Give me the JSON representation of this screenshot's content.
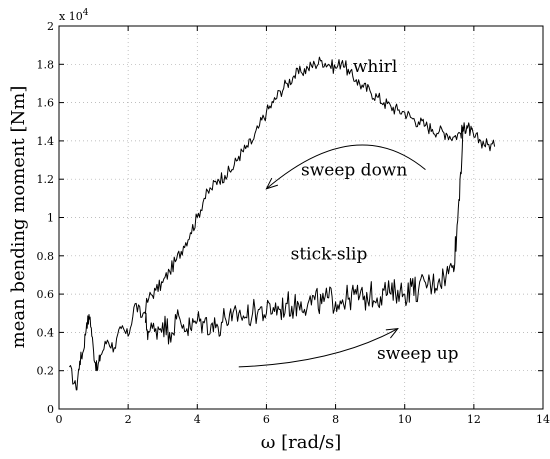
{
  "chart_data": {
    "type": "line",
    "title": "",
    "xlabel": "ω [rad/s]",
    "ylabel": "mean bending moment [Nm]",
    "xlim": [
      0,
      14
    ],
    "ylim": [
      0,
      2
    ],
    "y_multiplier_label": "x 10",
    "y_multiplier_exponent": "4",
    "grid": true,
    "xticks": [
      "0",
      "2",
      "4",
      "6",
      "8",
      "10",
      "12",
      "14"
    ],
    "yticks": [
      "0",
      "0.2",
      "0.4",
      "0.6",
      "0.8",
      "1",
      "1.2",
      "1.4",
      "1.6",
      "1.8",
      "2"
    ],
    "series": [
      {
        "x": [
          0.3,
          0.5,
          0.6,
          0.7,
          0.8,
          0.9,
          1.0,
          1.1,
          1.2,
          1.4,
          1.6,
          1.8,
          2.0,
          2.2,
          2.4,
          2.6,
          2.8,
          3.0,
          3.2,
          3.4,
          3.6,
          3.8,
          4.0,
          4.2,
          4.4,
          4.6,
          4.8,
          5.0,
          5.2,
          5.4,
          5.6,
          5.8,
          6.0,
          6.2,
          6.4,
          6.6,
          6.8,
          7.0,
          7.2,
          7.4,
          7.6,
          7.8,
          8.0,
          8.2,
          8.4,
          8.6,
          8.8,
          9.0,
          9.2,
          9.4,
          9.6,
          9.8,
          10.0,
          10.2,
          10.4,
          10.6,
          10.8,
          11.0,
          11.2,
          11.4,
          11.6,
          11.7,
          11.8,
          11.9,
          12.0,
          12.2,
          12.4,
          12.6
        ],
        "y": [
          0.22,
          0.1,
          0.25,
          0.3,
          0.45,
          0.48,
          0.3,
          0.2,
          0.28,
          0.36,
          0.32,
          0.42,
          0.38,
          0.55,
          0.48,
          0.58,
          0.62,
          0.66,
          0.72,
          0.78,
          0.85,
          0.92,
          1.0,
          1.1,
          1.15,
          1.2,
          1.22,
          1.25,
          1.32,
          1.36,
          1.4,
          1.48,
          1.55,
          1.6,
          1.66,
          1.7,
          1.74,
          1.76,
          1.78,
          1.8,
          1.82,
          1.8,
          1.78,
          1.82,
          1.75,
          1.72,
          1.68,
          1.66,
          1.63,
          1.6,
          1.58,
          1.56,
          1.55,
          1.52,
          1.5,
          1.48,
          1.46,
          1.45,
          1.44,
          1.42,
          1.44,
          1.46,
          1.48,
          1.45,
          1.42,
          1.4,
          1.38,
          1.37
        ]
      },
      {
        "x": [
          2.5,
          2.6,
          2.8,
          3.0,
          3.2,
          3.4,
          3.6,
          3.8,
          4.0,
          4.2,
          4.4,
          4.6,
          4.8,
          5.0,
          5.2,
          5.4,
          5.6,
          5.8,
          6.0,
          6.2,
          6.4,
          6.6,
          6.8,
          7.0,
          7.2,
          7.4,
          7.6,
          7.8,
          8.0,
          8.2,
          8.4,
          8.6,
          8.8,
          9.0,
          9.2,
          9.4,
          9.6,
          9.8,
          10.0,
          10.2,
          10.4,
          10.6,
          10.8,
          11.0,
          11.2,
          11.4,
          11.5,
          11.6,
          11.7
        ],
        "y": [
          0.45,
          0.4,
          0.42,
          0.45,
          0.4,
          0.47,
          0.44,
          0.42,
          0.46,
          0.45,
          0.44,
          0.43,
          0.48,
          0.46,
          0.5,
          0.48,
          0.5,
          0.52,
          0.5,
          0.53,
          0.52,
          0.55,
          0.53,
          0.56,
          0.55,
          0.57,
          0.55,
          0.58,
          0.56,
          0.57,
          0.58,
          0.6,
          0.57,
          0.6,
          0.58,
          0.62,
          0.6,
          0.62,
          0.6,
          0.64,
          0.62,
          0.66,
          0.65,
          0.68,
          0.7,
          0.75,
          0.9,
          1.2,
          1.45
        ]
      }
    ],
    "annotations": [
      {
        "text": "whirl",
        "x": 8.5,
        "y": 1.76
      },
      {
        "text": "sweep down",
        "x": 7.0,
        "y": 1.22
      },
      {
        "text": "stick-slip",
        "x": 6.7,
        "y": 0.78
      },
      {
        "text": "sweep up",
        "x": 9.2,
        "y": 0.26
      }
    ],
    "arrows": [
      {
        "name": "sweep-down",
        "from": [
          10.6,
          1.25
        ],
        "ctrl": [
          8.6,
          1.55
        ],
        "to": [
          6.0,
          1.15
        ]
      },
      {
        "name": "sweep-up",
        "from": [
          5.2,
          0.22
        ],
        "ctrl": [
          8.0,
          0.24
        ],
        "to": [
          9.8,
          0.42
        ]
      }
    ]
  }
}
